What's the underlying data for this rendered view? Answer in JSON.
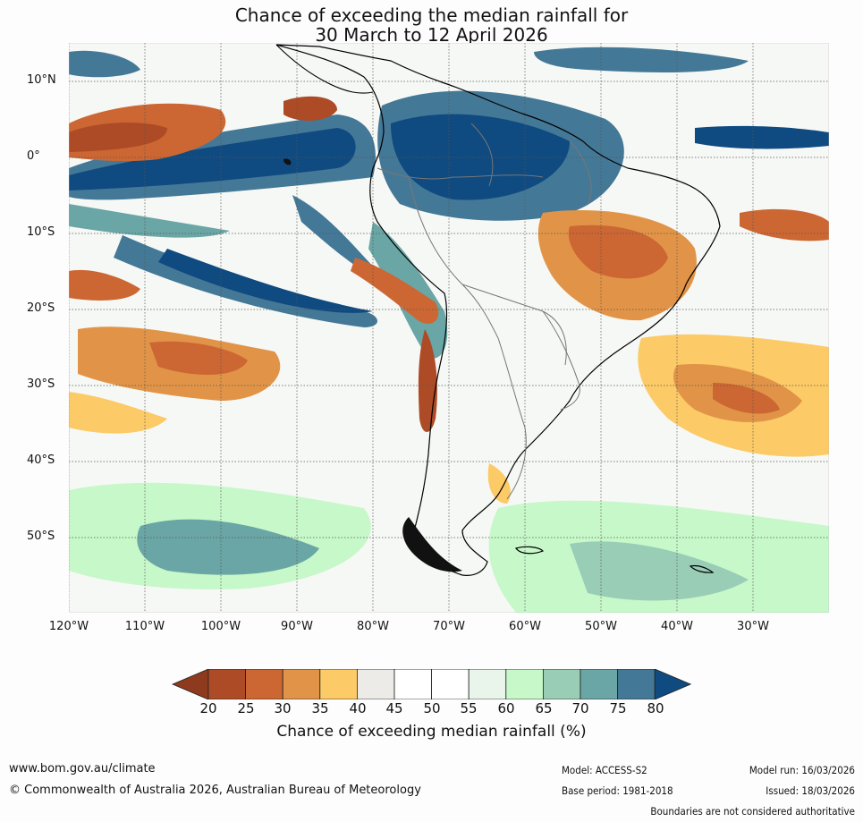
{
  "title_line1": "Chance of exceeding the median rainfall for",
  "title_line2": "30 March to 12 April 2026",
  "lat_labels": [
    "10°N",
    "0°",
    "10°S",
    "20°S",
    "30°S",
    "40°S",
    "50°S"
  ],
  "lon_labels": [
    "120°W",
    "110°W",
    "100°W",
    "90°W",
    "80°W",
    "70°W",
    "60°W",
    "50°W",
    "40°W",
    "30°W"
  ],
  "legend": {
    "title": "Chance of exceeding median rainfall (%)",
    "ticks": [
      "20",
      "25",
      "30",
      "35",
      "40",
      "45",
      "50",
      "55",
      "60",
      "65",
      "70",
      "75",
      "80"
    ],
    "colors": [
      "#8e3a1e",
      "#ad4b27",
      "#cc6733",
      "#e19447",
      "#fcca66",
      "#ecebe7",
      "#ffffff",
      "#ffffff",
      "#e9f5ea",
      "#c7f8c9",
      "#99cdb6",
      "#6aa6a5",
      "#447897",
      "#0f4a80"
    ]
  },
  "map_colors": {
    "ocean": "#f6f8f5",
    "wet_strong": "#0f4a80",
    "wet": "#447897",
    "wet_mid": "#6aa6a5",
    "wet_light": "#99cdb6",
    "green": "#c7f8c9",
    "dry_strong": "#ad4b27",
    "dry": "#cc6733",
    "dry_mid": "#e19447",
    "dry_light": "#fcca66",
    "neutral": "#ecebe7"
  },
  "footer": {
    "website": "www.bom.gov.au/climate",
    "copyright": "© Commonwealth of Australia 2026, Australian Bureau of Meteorology",
    "model": "Model: ACCESS-S2",
    "base_period": "Base period: 1981-2018",
    "model_run": "Model run: 16/03/2026",
    "issued": "Issued: 18/03/2026",
    "disclaimer": "Boundaries are not considered authoritative"
  }
}
